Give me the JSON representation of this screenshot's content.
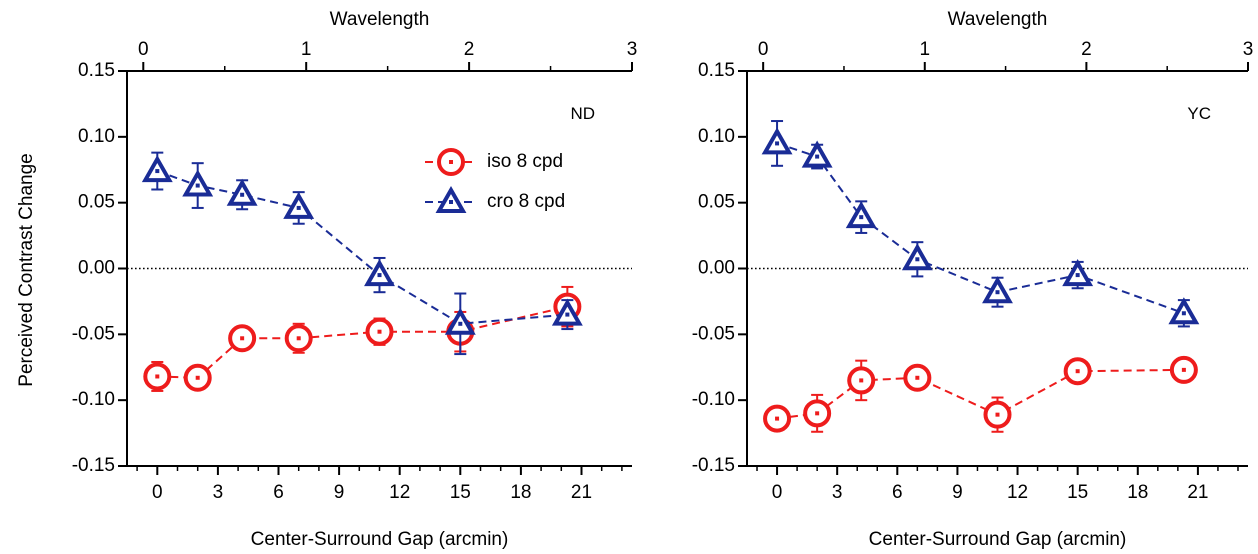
{
  "figure": {
    "ylabel": "Perceived Contrast Change"
  },
  "chart_data": [
    {
      "type": "line",
      "annotation": "ND",
      "xlabel": "Center-Surround Gap (arcmin)",
      "x2label": "Wavelength",
      "xlim": [
        -1.5,
        23.5
      ],
      "xticks": [
        0,
        3,
        6,
        9,
        12,
        15,
        18,
        21
      ],
      "x2lim": [
        -0.1,
        3.0
      ],
      "x2ticks": [
        0,
        1,
        2,
        3
      ],
      "ylim": [
        -0.15,
        0.15
      ],
      "yticks": [
        0.15,
        0.1,
        0.05,
        0.0,
        -0.05,
        -0.1,
        -0.15
      ],
      "ytick_labels": [
        "0.15",
        "0.10",
        "0.05",
        "0.00",
        "-0.05",
        "-0.10",
        "-0.15"
      ],
      "reference_line_y": 0,
      "legend": {
        "position": "top-right"
      },
      "series": [
        {
          "name": "iso 8 cpd",
          "marker": "circle",
          "color": "#ee1c1c",
          "x": [
            0,
            2,
            4.2,
            7,
            11,
            15,
            20.3
          ],
          "y": [
            -0.082,
            -0.083,
            -0.053,
            -0.053,
            -0.048,
            -0.048,
            -0.029
          ],
          "err": [
            0.011,
            0.004,
            0.008,
            0.011,
            0.01,
            0.015,
            0.015
          ]
        },
        {
          "name": "cro 8 cpd",
          "marker": "triangle",
          "color": "#1a2c96",
          "x": [
            0,
            2,
            4.2,
            7,
            11,
            15,
            20.3
          ],
          "y": [
            0.074,
            0.063,
            0.056,
            0.046,
            -0.005,
            -0.042,
            -0.035
          ],
          "err": [
            0.014,
            0.017,
            0.011,
            0.012,
            0.013,
            0.023,
            0.011
          ]
        }
      ]
    },
    {
      "type": "line",
      "annotation": "YC",
      "xlabel": "Center-Surround Gap (arcmin)",
      "x2label": "Wavelength",
      "xlim": [
        -1.5,
        23.5
      ],
      "xticks": [
        0,
        3,
        6,
        9,
        12,
        15,
        18,
        21
      ],
      "x2lim": [
        -0.1,
        3.0
      ],
      "x2ticks": [
        0,
        1,
        2,
        3
      ],
      "ylim": [
        -0.15,
        0.15
      ],
      "yticks": [
        0.15,
        0.1,
        0.05,
        0.0,
        -0.05,
        -0.1,
        -0.15
      ],
      "ytick_labels": [
        "0.15",
        "0.10",
        "0.05",
        "0.00",
        "-0.05",
        "-0.10",
        "-0.15"
      ],
      "reference_line_y": 0,
      "series": [
        {
          "name": "iso 8 cpd",
          "marker": "circle",
          "color": "#ee1c1c",
          "x": [
            0,
            2,
            4.2,
            7,
            11,
            15,
            20.3
          ],
          "y": [
            -0.114,
            -0.11,
            -0.085,
            -0.083,
            -0.111,
            -0.078,
            -0.077
          ],
          "err": [
            0.008,
            0.014,
            0.015,
            0.008,
            0.013,
            0.004,
            0.004
          ]
        },
        {
          "name": "cro 8 cpd",
          "marker": "triangle",
          "color": "#1a2c96",
          "x": [
            0,
            2,
            4.2,
            7,
            11,
            15,
            20.3
          ],
          "y": [
            0.095,
            0.085,
            0.039,
            0.007,
            -0.018,
            -0.005,
            -0.034
          ],
          "err": [
            0.017,
            0.009,
            0.012,
            0.013,
            0.011,
            0.01,
            0.01
          ]
        }
      ]
    }
  ]
}
